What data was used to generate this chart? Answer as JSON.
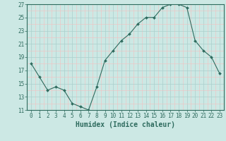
{
  "x": [
    0,
    1,
    2,
    3,
    4,
    5,
    6,
    7,
    8,
    9,
    10,
    11,
    12,
    13,
    14,
    15,
    16,
    17,
    18,
    19,
    20,
    21,
    22,
    23
  ],
  "y": [
    18,
    16,
    14,
    14.5,
    14,
    12,
    11.5,
    11,
    14.5,
    18.5,
    20,
    21.5,
    22.5,
    24,
    25,
    25,
    26.5,
    27,
    27,
    26.5,
    21.5,
    20,
    19,
    16.5
  ],
  "line_color": "#2e6b5e",
  "marker": "D",
  "marker_size": 2,
  "background_color": "#cce8e4",
  "grid_color_major": "#aacfcc",
  "grid_color_minor": "#f4c0c0",
  "xlabel": "Humidex (Indice chaleur)",
  "ylim": [
    11,
    27
  ],
  "xlim": [
    -0.5,
    23.5
  ],
  "yticks": [
    11,
    13,
    15,
    17,
    19,
    21,
    23,
    25,
    27
  ],
  "xticks": [
    0,
    1,
    2,
    3,
    4,
    5,
    6,
    7,
    8,
    9,
    10,
    11,
    12,
    13,
    14,
    15,
    16,
    17,
    18,
    19,
    20,
    21,
    22,
    23
  ],
  "tick_fontsize": 5.5,
  "label_fontsize": 7,
  "axes_color": "#2e6b5e",
  "line_width": 0.8
}
